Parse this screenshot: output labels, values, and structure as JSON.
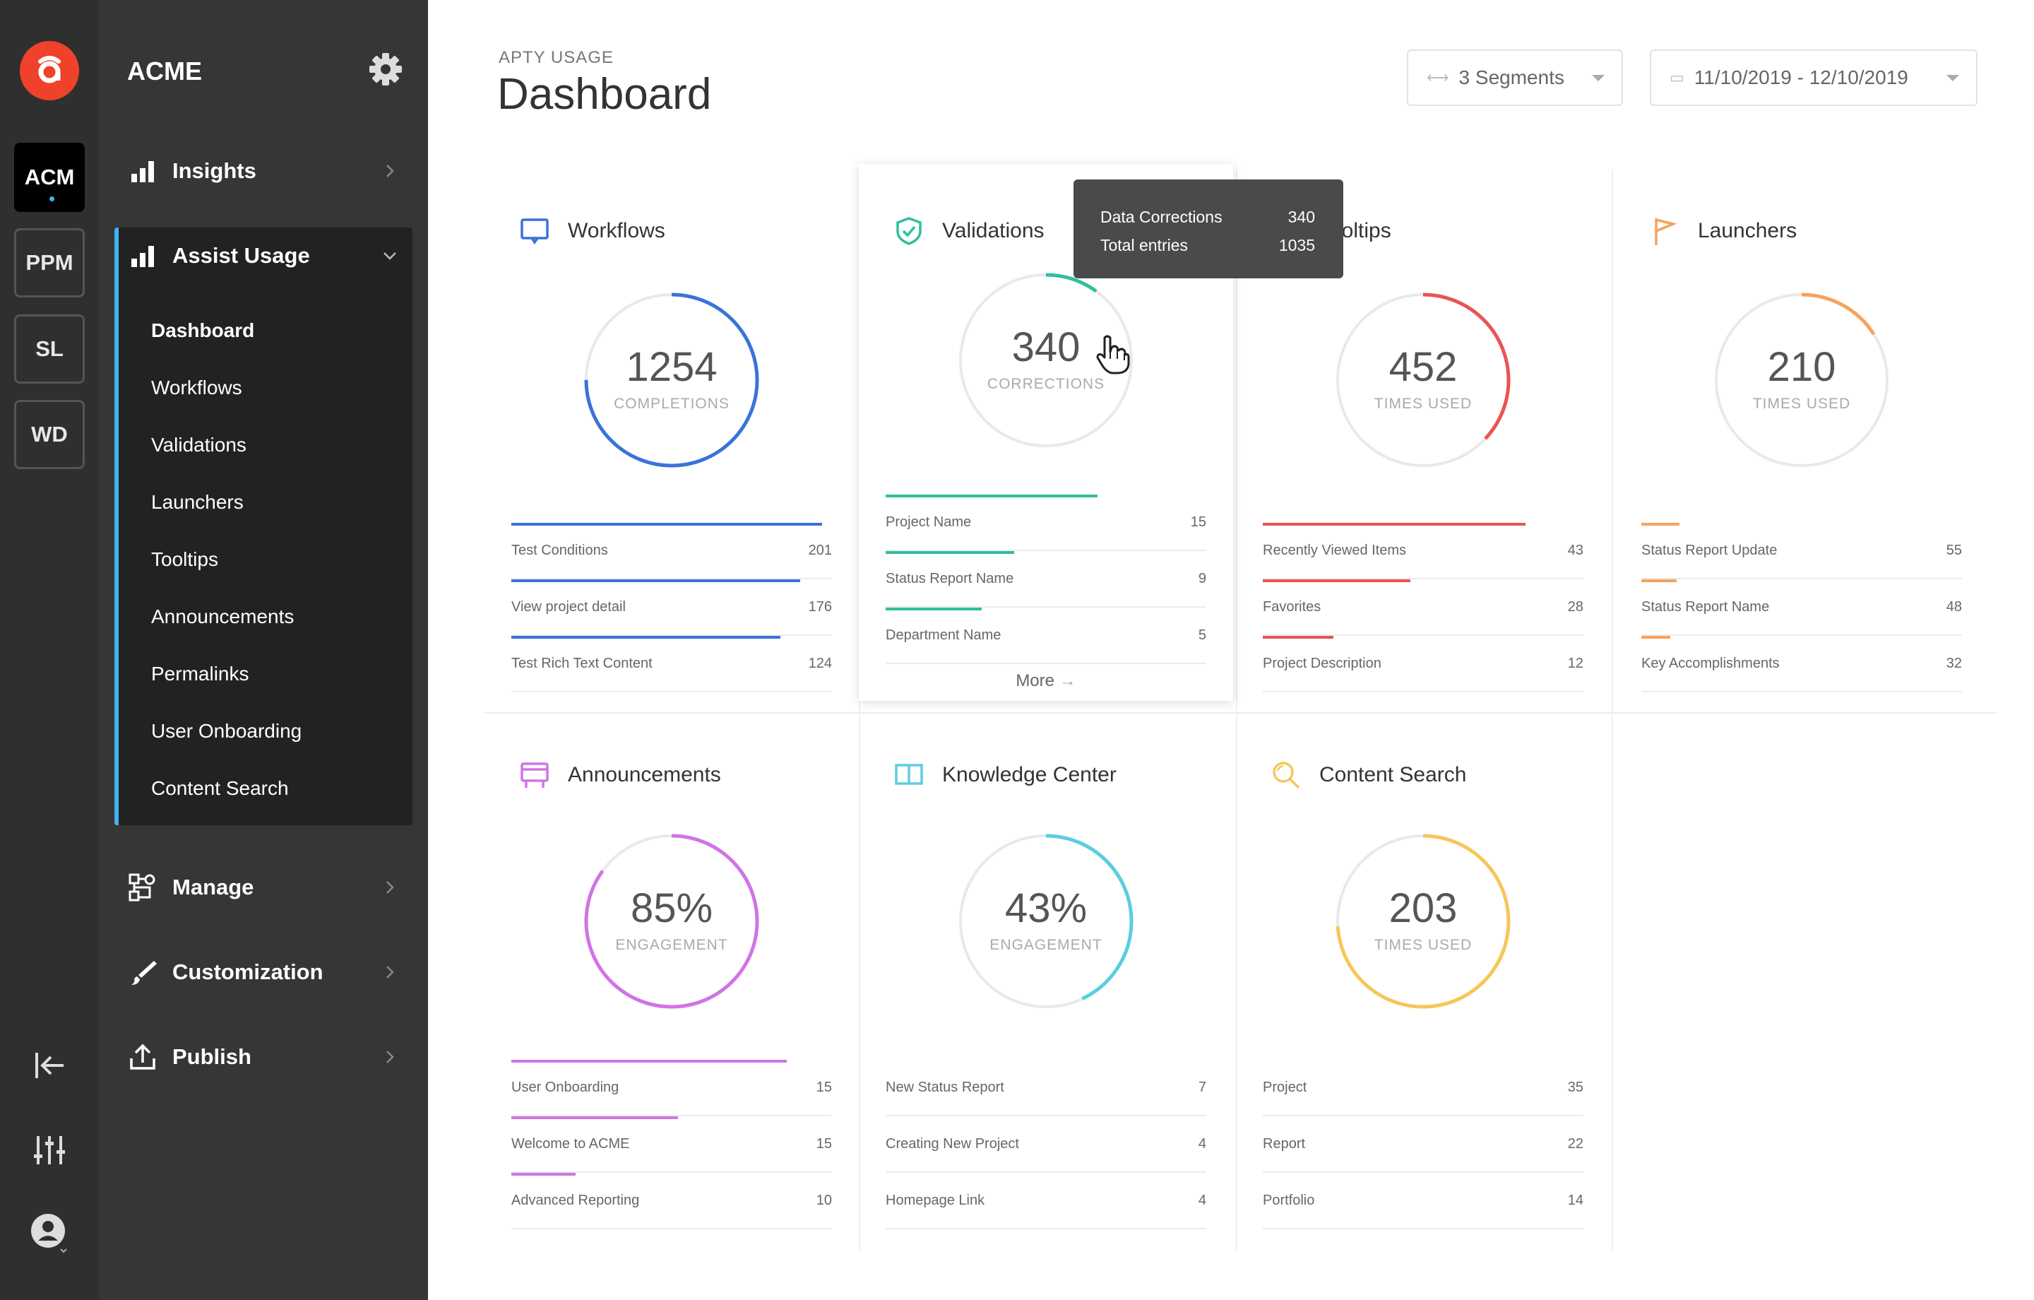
{
  "rail": {
    "logo_letter": "a",
    "workspaces": [
      "ACM",
      "PPM",
      "SL",
      "WD"
    ],
    "active_workspace": "ACM"
  },
  "sidebar": {
    "org": "ACME",
    "items": {
      "insights": "Insights",
      "assist_usage": "Assist Usage",
      "manage": "Manage",
      "customization": "Customization",
      "publish": "Publish"
    },
    "sub_items": [
      "Dashboard",
      "Workflows",
      "Validations",
      "Launchers",
      "Tooltips",
      "Announcements",
      "Permalinks",
      "User Onboarding",
      "Content Search"
    ],
    "current_sub": "Dashboard"
  },
  "header": {
    "crumb": "APTY USAGE",
    "title": "Dashboard",
    "segments": "3 Segments",
    "date_range": "11/10/2019 - 12/10/2019"
  },
  "cards": [
    {
      "title": "Workflows",
      "value": "1254",
      "unit": "COMPLETIONS",
      "color": "#3a72d8",
      "ring": 0.75,
      "rows": [
        {
          "name": "Test Conditions",
          "value": "201",
          "bar": 0.97
        },
        {
          "name": "View project detail",
          "value": "176",
          "bar": 0.9
        },
        {
          "name": "Test Rich Text Content",
          "value": "124",
          "bar": 0.84
        }
      ]
    },
    {
      "title": "Validations",
      "value": "340",
      "unit": "CORRECTIONS",
      "color": "#2fbf9f",
      "ring": 0.1,
      "rows": [
        {
          "name": "Project Name",
          "value": "15",
          "bar": 0.66
        },
        {
          "name": "Status Report Name",
          "value": "9",
          "bar": 0.4
        },
        {
          "name": "Department Name",
          "value": "5",
          "bar": 0.3
        }
      ],
      "more": "More"
    },
    {
      "title": "Tooltips",
      "value": "452",
      "unit": "TIMES USED",
      "color": "#e95454",
      "ring": 0.37,
      "rows": [
        {
          "name": "Recently Viewed Items",
          "value": "43",
          "bar": 0.82
        },
        {
          "name": "Favorites",
          "value": "28",
          "bar": 0.46
        },
        {
          "name": "Project Description",
          "value": "12",
          "bar": 0.22
        }
      ]
    },
    {
      "title": "Launchers",
      "value": "210",
      "unit": "TIMES USED",
      "color": "#f5a35c",
      "ring": 0.16,
      "rows": [
        {
          "name": "Status Report Update",
          "value": "55",
          "bar": 0.12
        },
        {
          "name": "Status Report Name",
          "value": "48",
          "bar": 0.11
        },
        {
          "name": "Key Accomplishments",
          "value": "32",
          "bar": 0.09
        }
      ]
    },
    {
      "title": "Announcements",
      "value": "85%",
      "unit": "ENGAGEMENT",
      "color": "#d173e6",
      "ring": 0.85,
      "rows": [
        {
          "name": "User Onboarding",
          "value": "15",
          "bar": 0.86
        },
        {
          "name": "Welcome to ACME",
          "value": "15",
          "bar": 0.52
        },
        {
          "name": "Advanced Reporting",
          "value": "10",
          "bar": 0.2
        }
      ]
    },
    {
      "title": "Knowledge Center",
      "value": "43%",
      "unit": "ENGAGEMENT",
      "color": "#5ccde0",
      "ring": 0.43,
      "rows": [
        {
          "name": "New Status Report",
          "value": "7",
          "bar": 0
        },
        {
          "name": "Creating New Project",
          "value": "4",
          "bar": 0
        },
        {
          "name": "Homepage Link",
          "value": "4",
          "bar": 0
        }
      ]
    },
    {
      "title": "Content Search",
      "value": "203",
      "unit": "TIMES USED",
      "color": "#f7c65b",
      "ring": 0.74,
      "rows": [
        {
          "name": "Project",
          "value": "35",
          "bar": 0
        },
        {
          "name": "Report",
          "value": "22",
          "bar": 0
        },
        {
          "name": "Portfolio",
          "value": "14",
          "bar": 0
        }
      ]
    }
  ],
  "tooltip": {
    "rows": [
      {
        "label": "Data Corrections",
        "value": "340"
      },
      {
        "label": "Total entries",
        "value": "1035"
      }
    ]
  }
}
